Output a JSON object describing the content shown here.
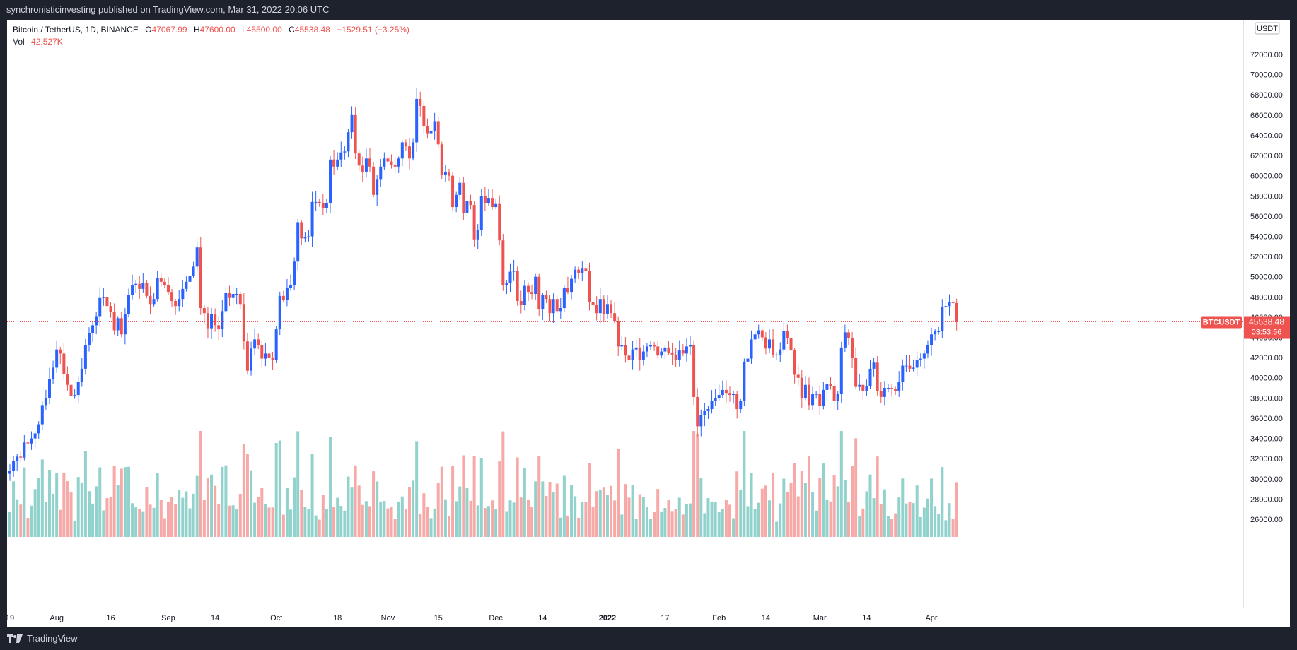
{
  "publisher": "synchronisticinvesting published on TradingView.com, Mar 31, 2022 20:06 UTC",
  "brand": "TradingView",
  "legend": {
    "symbol": "Bitcoin / TetherUS, 1D, BINANCE",
    "open_label": "O",
    "open": "47067.99",
    "high_label": "H",
    "high": "47600.00",
    "low_label": "L",
    "low": "45500.00",
    "close_label": "C",
    "close": "45538.48",
    "change": "−1529.51 (−3.25%)",
    "vol_label": "Vol",
    "vol": "42.527K"
  },
  "price_axis": {
    "currency": "USDT",
    "last_label": "BTCUSDT",
    "last_price": "45538.48",
    "countdown": "03:53:56"
  },
  "colors": {
    "up": "#2962ff",
    "down": "#ef5350",
    "vol_up": "#26a69a",
    "vol_down": "#ef5350"
  },
  "chart_data": {
    "type": "candlestick",
    "symbol": "BTCUSDT",
    "interval": "1D",
    "y_ticks": [
      "72000.00",
      "70000.00",
      "68000.00",
      "66000.00",
      "64000.00",
      "62000.00",
      "60000.00",
      "58000.00",
      "56000.00",
      "54000.00",
      "52000.00",
      "50000.00",
      "48000.00",
      "46000.00",
      "44000.00",
      "42000.00",
      "40000.00",
      "38000.00",
      "36000.00",
      "34000.00",
      "32000.00",
      "30000.00",
      "28000.00",
      "26000.00"
    ],
    "x_ticks": [
      {
        "label": "19",
        "date": "2021-07-19"
      },
      {
        "label": "Aug",
        "date": "2021-08-01"
      },
      {
        "label": "16",
        "date": "2021-08-16"
      },
      {
        "label": "Sep",
        "date": "2021-09-01"
      },
      {
        "label": "14",
        "date": "2021-09-14"
      },
      {
        "label": "Oct",
        "date": "2021-10-01"
      },
      {
        "label": "18",
        "date": "2021-10-18"
      },
      {
        "label": "Nov",
        "date": "2021-11-01"
      },
      {
        "label": "15",
        "date": "2021-11-15"
      },
      {
        "label": "Dec",
        "date": "2021-12-01"
      },
      {
        "label": "14",
        "date": "2021-12-14"
      },
      {
        "label": "2022",
        "date": "2022-01-01"
      },
      {
        "label": "17",
        "date": "2022-01-17"
      },
      {
        "label": "Feb",
        "date": "2022-02-01"
      },
      {
        "label": "14",
        "date": "2022-02-14"
      },
      {
        "label": "Mar",
        "date": "2022-03-01"
      },
      {
        "label": "14",
        "date": "2022-03-14"
      },
      {
        "label": "Apr",
        "date": "2022-04-01"
      }
    ],
    "ylim": [
      25000,
      73000
    ],
    "start_date": "2021-07-19",
    "closes": [
      30800,
      31800,
      32200,
      32100,
      33600,
      33500,
      34000,
      34500,
      35400,
      37300,
      38000,
      39900,
      41000,
      42800,
      42400,
      40400,
      39300,
      38200,
      38300,
      39600,
      40900,
      43200,
      44400,
      45200,
      46100,
      47900,
      48000,
      47100,
      46500,
      44700,
      45900,
      44300,
      46300,
      48200,
      49200,
      49300,
      48800,
      49400,
      48100,
      47300,
      47800,
      49900,
      49500,
      49200,
      48500,
      47600,
      47100,
      47800,
      48800,
      49500,
      50100,
      51000,
      52900,
      46900,
      46400,
      44900,
      46300,
      45200,
      44800,
      46600,
      48400,
      47900,
      48300,
      48300,
      47300,
      43600,
      40700,
      42900,
      43800,
      43200,
      41900,
      42400,
      42000,
      41800,
      44800,
      48100,
      47700,
      48900,
      49200,
      51500,
      55400,
      53800,
      53900,
      54000,
      57400,
      57400,
      57300,
      56800,
      57300,
      61600,
      60900,
      61600,
      62300,
      62400,
      64300,
      66000,
      62200,
      61000,
      60400,
      61700,
      60900,
      58100,
      59600,
      60900,
      61700,
      61400,
      61100,
      60900,
      61700,
      63300,
      62900,
      61700,
      63300,
      67600,
      66900,
      64900,
      64200,
      64400,
      65400,
      63100,
      60100,
      60400,
      60000,
      56900,
      58100,
      59300,
      56300,
      57500,
      57100,
      53700,
      54600,
      58000,
      57300,
      57800,
      56900,
      57200,
      53600,
      49200,
      49400,
      50500,
      50600,
      47600,
      47200,
      49100,
      48500,
      48300,
      50000,
      46800,
      48200,
      47800,
      46400,
      47800,
      46600,
      46900,
      48900,
      48500,
      49800,
      50700,
      50400,
      50800,
      50600,
      47500,
      47200,
      46400,
      47800,
      46300,
      47300,
      46400,
      45600,
      43100,
      43200,
      42200,
      41800,
      42800,
      43000,
      41800,
      42600,
      43100,
      43200,
      43100,
      42200,
      42600,
      43000,
      42500,
      42300,
      41800,
      42700,
      42400,
      43100,
      43200,
      38100,
      35200,
      36300,
      36700,
      36900,
      37700,
      38000,
      38300,
      38800,
      38500,
      38300,
      38400,
      36900,
      37700,
      41600,
      41900,
      43800,
      44300,
      44700,
      44000,
      42900,
      43800,
      42300,
      42300,
      42800,
      44600,
      43900,
      42700,
      40300,
      40000,
      38000,
      39300,
      37300,
      38400,
      38400,
      37200,
      38800,
      39400,
      39200,
      37700,
      38400,
      43000,
      44500,
      43900,
      42000,
      39100,
      39300,
      38700,
      39200,
      40900,
      41500,
      38700,
      38100,
      39000,
      39000,
      38900,
      38700,
      39600,
      41200,
      41200,
      40900,
      41000,
      41800,
      41900,
      42400,
      43200,
      44300,
      44600,
      44600,
      47000,
      47100,
      47500,
      47400,
      45500
    ],
    "volume_ylim": [
      0,
      200000
    ],
    "volume_unit": "BTC"
  }
}
